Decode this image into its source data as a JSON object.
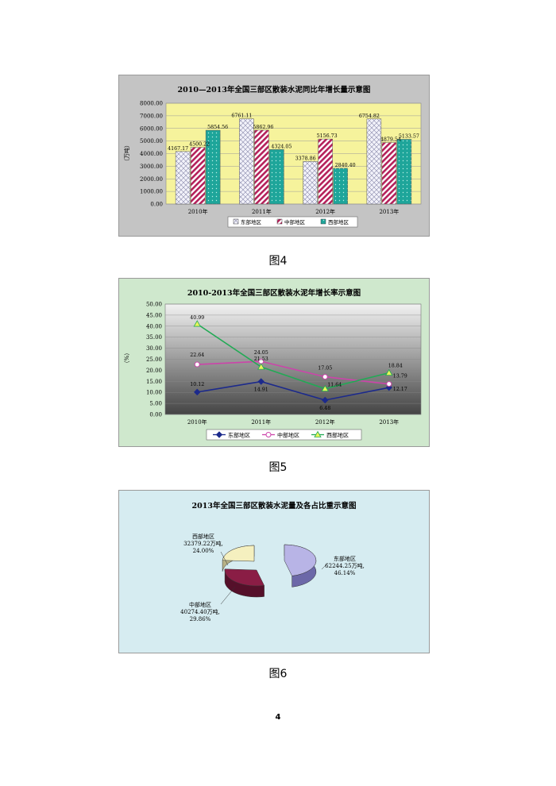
{
  "captions": {
    "fig4": "图4",
    "fig5": "图5",
    "fig6": "图6"
  },
  "page_number": "4",
  "colors": {
    "east": "#e8e8f4",
    "central": "#c8265a",
    "west": "#1ea59a",
    "line_east": "#1c2a8c",
    "line_central": "#cc44aa",
    "line_west": "#22aa55",
    "pie_east": "#b8b4e6",
    "pie_central": "#8a1d45",
    "pie_west": "#f5f0bf"
  },
  "chart_data": [
    {
      "type": "bar",
      "title": "2010—2013年全国三部区散装水泥同比年增长量示意图",
      "ylabel": "（万吨）",
      "xlabel": "",
      "ylim": [
        0,
        8000
      ],
      "yticks": [
        "0.00",
        "1000.00",
        "2000.00",
        "3000.00",
        "4000.00",
        "5000.00",
        "6000.00",
        "7000.00",
        "8000.00"
      ],
      "categories": [
        "2010年",
        "2011年",
        "2012年",
        "2013年"
      ],
      "series": [
        {
          "name": "东部地区",
          "values": [
            4167.17,
            6761.11,
            3378.86,
            6754.82
          ],
          "labels": [
            "4167.17",
            "6761.11",
            "3378.86",
            "6754.82"
          ]
        },
        {
          "name": "中部地区",
          "values": [
            4500.22,
            5862.96,
            5156.73,
            4879.54
          ],
          "labels": [
            "4500.22",
            "5862.96",
            "5156.73",
            "4879.54"
          ]
        },
        {
          "name": "西部地区",
          "values": [
            5854.56,
            4324.05,
            2840.4,
            5133.57
          ],
          "labels": [
            "5854.56",
            "4324.05",
            "2840.40",
            "5133.57"
          ]
        }
      ],
      "grid": true,
      "legend": "bottom"
    },
    {
      "type": "line",
      "title": "2010-2013年全国三部区散装水泥年增长率示意图",
      "ylabel": "（%）",
      "xlabel": "",
      "ylim": [
        0,
        50
      ],
      "yticks": [
        "0.00",
        "5.00",
        "10.00",
        "15.00",
        "20.00",
        "25.00",
        "30.00",
        "35.00",
        "40.00",
        "45.00",
        "50.00"
      ],
      "categories": [
        "2010年",
        "2011年",
        "2012年",
        "2013年"
      ],
      "series": [
        {
          "name": "东部地区",
          "values": [
            10.12,
            14.91,
            6.48,
            12.17
          ],
          "labels": [
            "10.12",
            "14.91",
            "6.48",
            "12.17"
          ]
        },
        {
          "name": "中部地区",
          "values": [
            22.64,
            24.05,
            17.05,
            13.79
          ],
          "labels": [
            "22.64",
            "24.05",
            "17.05",
            "13.79"
          ]
        },
        {
          "name": "西部地区",
          "values": [
            40.99,
            21.53,
            11.64,
            18.84
          ],
          "labels": [
            "40.99",
            "21.53",
            "11.64",
            "18.84"
          ]
        }
      ],
      "grid": true,
      "legend": "bottom"
    },
    {
      "type": "pie",
      "title": "2013年全国三部区散装水泥量及各占比重示意图",
      "slices": [
        {
          "name": "东部地区",
          "value": 62244.25,
          "percent": 46.14,
          "line1": "东部地区",
          "line2": "62244.25万吨,",
          "line3": "46.14%"
        },
        {
          "name": "中部地区",
          "value": 40274.4,
          "percent": 29.86,
          "line1": "中部地区",
          "line2": "40274.40万吨,",
          "line3": "29.86%"
        },
        {
          "name": "西部地区",
          "value": 32379.22,
          "percent": 24.0,
          "line1": "西部地区",
          "line2": "32379.22万吨,",
          "line3": "24.00%"
        }
      ]
    }
  ]
}
